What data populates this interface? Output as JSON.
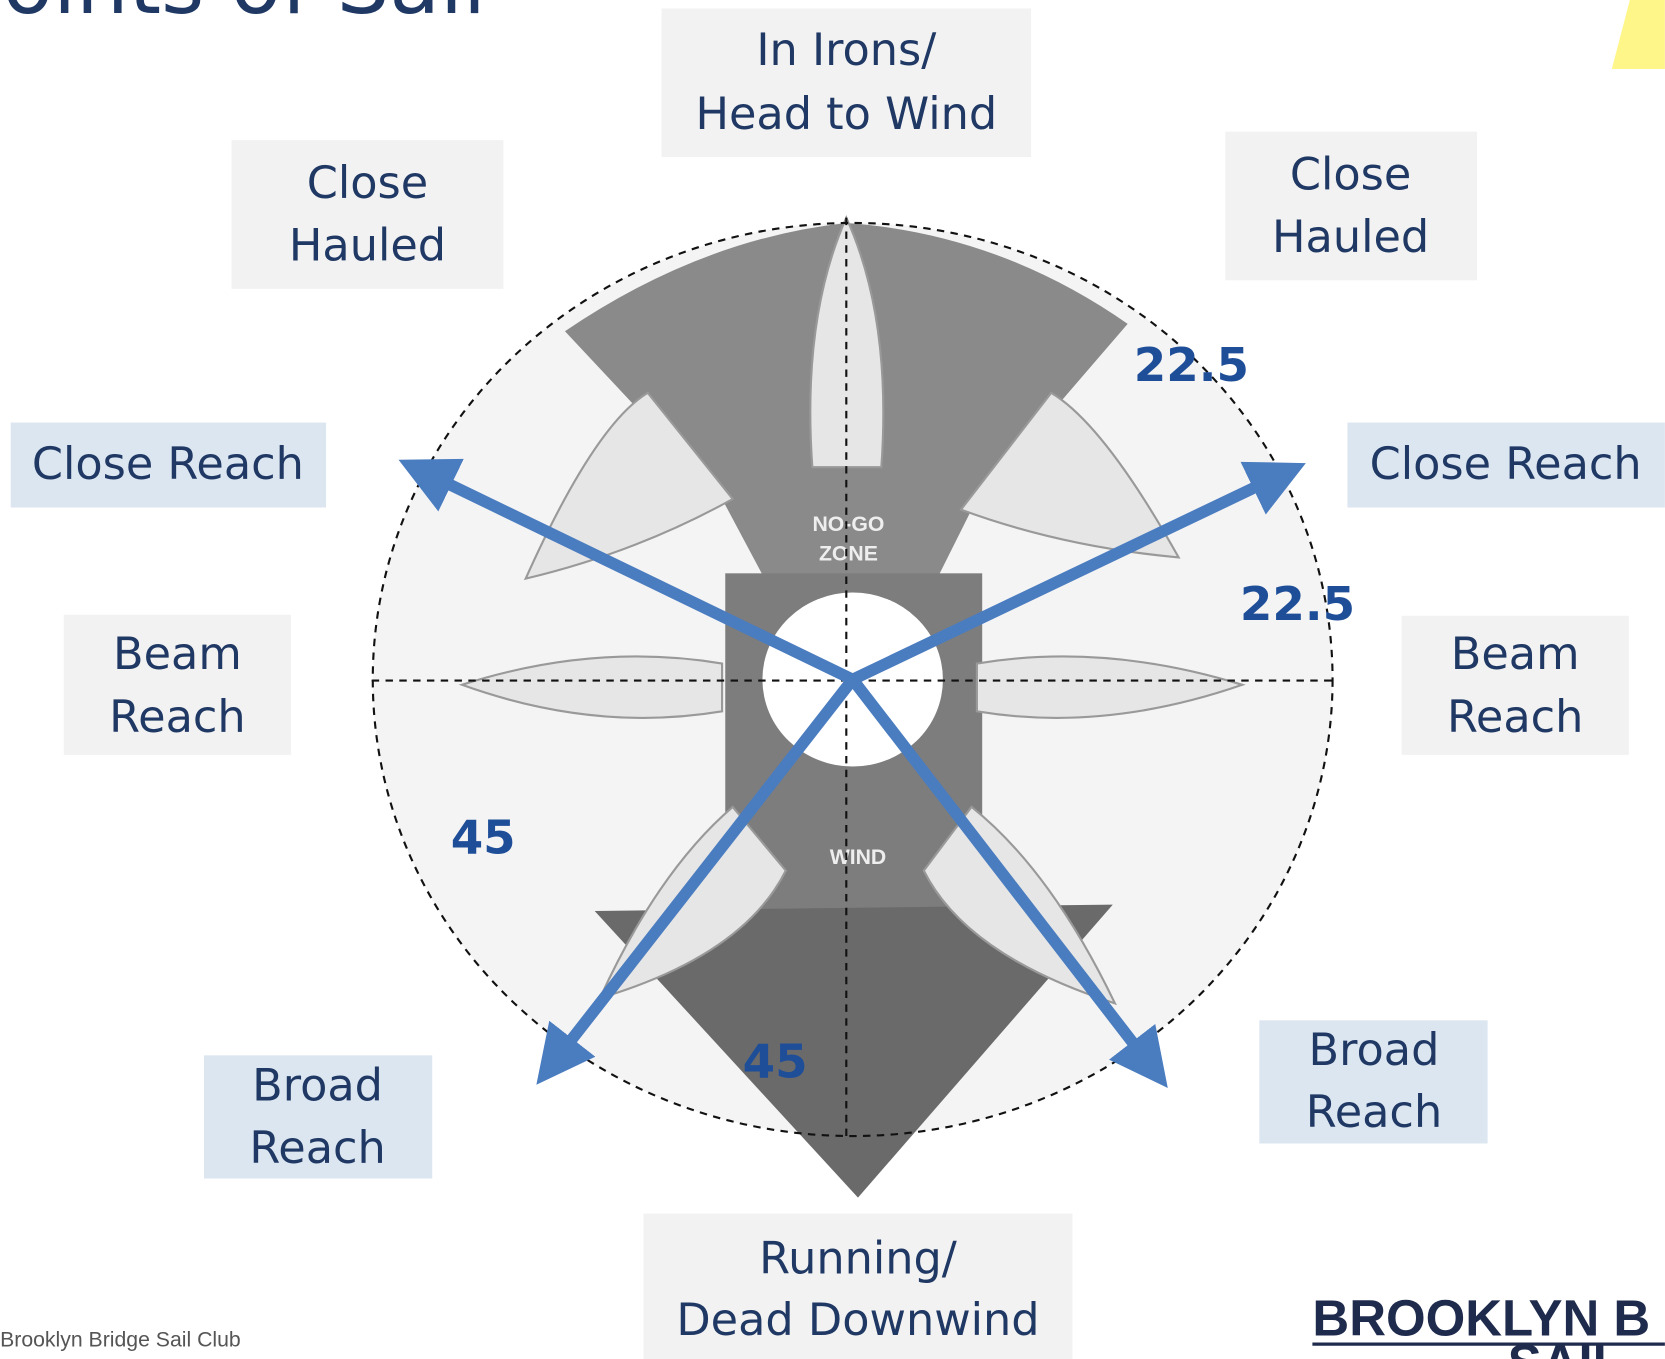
{
  "header": {
    "title": "Points of Sail"
  },
  "labels": {
    "in_irons": [
      "In Irons/",
      "Head to Wind"
    ],
    "close_hauled_left": [
      "Close",
      "Hauled"
    ],
    "close_hauled_right": [
      "Close",
      "Hauled"
    ],
    "close_reach_left": "Close Reach",
    "close_reach_right": "Close Reach",
    "beam_reach_left": [
      "Beam",
      "Reach"
    ],
    "beam_reach_right": [
      "Beam",
      "Reach"
    ],
    "broad_reach_left": [
      "Broad",
      "Reach"
    ],
    "broad_reach_right": [
      "Broad",
      "Reach"
    ],
    "running": [
      "Running/",
      "Dead  Downwind"
    ]
  },
  "angles": [
    22.5,
    22.5,
    45,
    45
  ],
  "diagram": {
    "no_go": [
      "NO-GO",
      "ZONE"
    ],
    "wind": "WIND"
  },
  "footer": {
    "text": "Brooklyn Bridge Sail Club",
    "logo": [
      "BROOKLYN B",
      "SAIL"
    ]
  }
}
